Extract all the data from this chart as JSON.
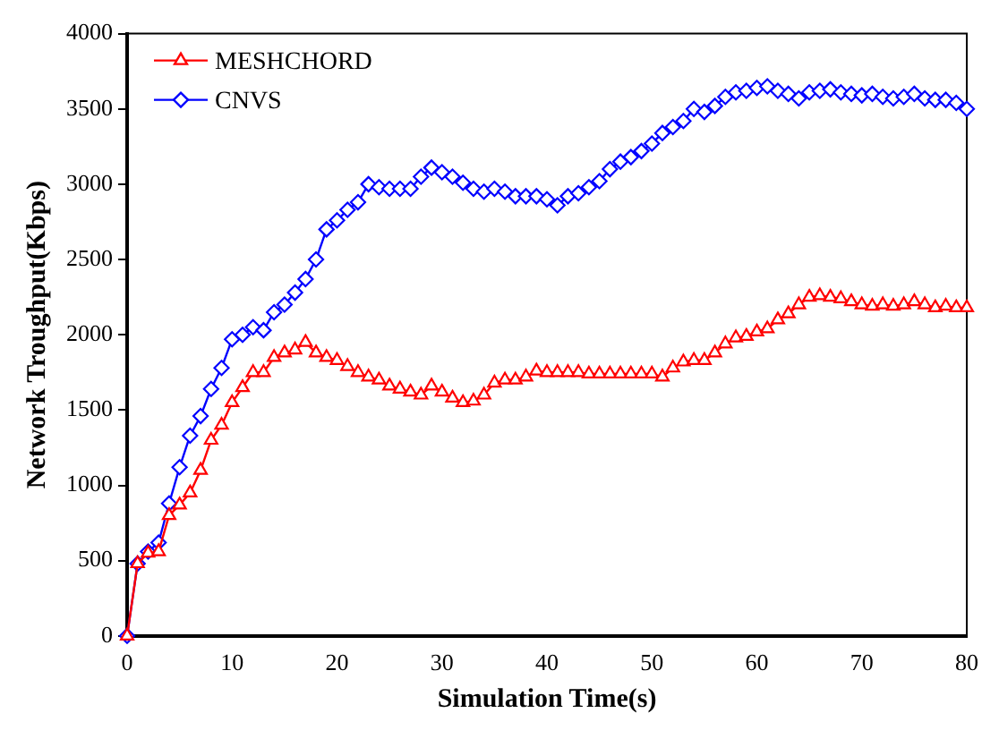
{
  "chart_data": {
    "type": "line",
    "xlabel": "Simulation Time(s)",
    "ylabel": "Network Troughput(Kbps)",
    "x": [
      0,
      1,
      2,
      3,
      4,
      5,
      6,
      7,
      8,
      9,
      10,
      11,
      12,
      13,
      14,
      15,
      16,
      17,
      18,
      19,
      20,
      21,
      22,
      23,
      24,
      25,
      26,
      27,
      28,
      29,
      30,
      31,
      32,
      33,
      34,
      35,
      36,
      37,
      38,
      39,
      40,
      41,
      42,
      43,
      44,
      45,
      46,
      47,
      48,
      49,
      50,
      51,
      52,
      53,
      54,
      55,
      56,
      57,
      58,
      59,
      60,
      61,
      62,
      63,
      64,
      65,
      66,
      67,
      68,
      69,
      70,
      71,
      72,
      73,
      74,
      75,
      76,
      77,
      78,
      79,
      80
    ],
    "series": [
      {
        "name": "MESHCHORD",
        "color": "#ff0000",
        "marker": "triangle",
        "values": [
          0,
          480,
          550,
          560,
          800,
          870,
          950,
          1100,
          1300,
          1400,
          1550,
          1650,
          1750,
          1750,
          1850,
          1880,
          1900,
          1950,
          1880,
          1850,
          1830,
          1790,
          1750,
          1720,
          1700,
          1660,
          1640,
          1620,
          1600,
          1660,
          1620,
          1580,
          1550,
          1560,
          1600,
          1680,
          1700,
          1700,
          1720,
          1760,
          1750,
          1750,
          1750,
          1750,
          1740,
          1740,
          1740,
          1740,
          1740,
          1740,
          1740,
          1720,
          1780,
          1820,
          1830,
          1830,
          1880,
          1940,
          1980,
          1990,
          2020,
          2040,
          2100,
          2140,
          2200,
          2250,
          2260,
          2250,
          2240,
          2220,
          2200,
          2190,
          2200,
          2190,
          2200,
          2220,
          2200,
          2180,
          2190,
          2180,
          2180
        ]
      },
      {
        "name": "CNVS",
        "color": "#0000ff",
        "marker": "diamond",
        "values": [
          0,
          480,
          560,
          620,
          880,
          1120,
          1330,
          1460,
          1640,
          1780,
          1970,
          2000,
          2050,
          2030,
          2150,
          2200,
          2280,
          2370,
          2500,
          2700,
          2760,
          2830,
          2880,
          3000,
          2980,
          2970,
          2970,
          2970,
          3050,
          3110,
          3080,
          3050,
          3010,
          2970,
          2950,
          2970,
          2950,
          2920,
          2920,
          2920,
          2900,
          2860,
          2920,
          2940,
          2980,
          3020,
          3100,
          3150,
          3180,
          3220,
          3270,
          3340,
          3380,
          3420,
          3500,
          3480,
          3520,
          3580,
          3610,
          3620,
          3640,
          3650,
          3620,
          3600,
          3570,
          3610,
          3620,
          3630,
          3610,
          3600,
          3590,
          3600,
          3580,
          3570,
          3580,
          3600,
          3570,
          3560,
          3560,
          3540,
          3500
        ]
      }
    ],
    "xlim": [
      0,
      80
    ],
    "xticks": [
      0,
      10,
      20,
      30,
      40,
      50,
      60,
      70,
      80
    ],
    "ylim": [
      0,
      4000
    ],
    "yticks": [
      0,
      500,
      1000,
      1500,
      2000,
      2500,
      3000,
      3500,
      4000
    ],
    "grid": false,
    "legend": "top left",
    "line_style": "solid"
  }
}
